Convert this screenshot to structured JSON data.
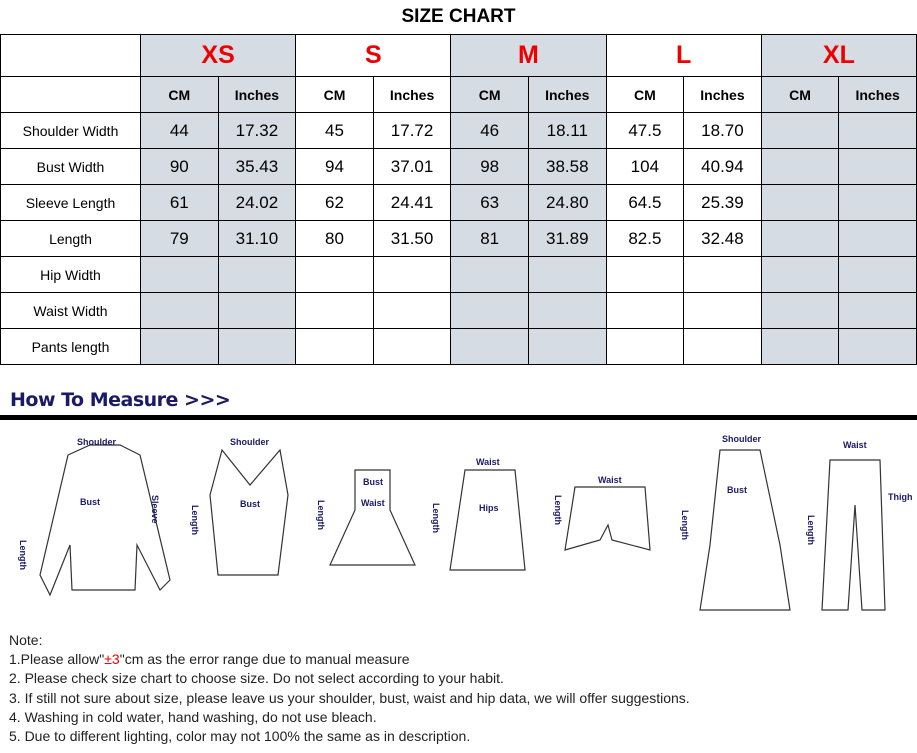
{
  "title": "SIZE CHART",
  "sizes": [
    "XS",
    "S",
    "M",
    "L",
    "XL"
  ],
  "units": [
    "CM",
    "Inches"
  ],
  "rows": [
    {
      "label": "Shoulder Width",
      "values": [
        "44",
        "17.32",
        "45",
        "17.72",
        "46",
        "18.11",
        "47.5",
        "18.70",
        "",
        ""
      ]
    },
    {
      "label": "Bust Width",
      "values": [
        "90",
        "35.43",
        "94",
        "37.01",
        "98",
        "38.58",
        "104",
        "40.94",
        "",
        ""
      ]
    },
    {
      "label": "Sleeve Length",
      "values": [
        "61",
        "24.02",
        "62",
        "24.41",
        "63",
        "24.80",
        "64.5",
        "25.39",
        "",
        ""
      ]
    },
    {
      "label": "Length",
      "values": [
        "79",
        "31.10",
        "80",
        "31.50",
        "81",
        "31.89",
        "82.5",
        "32.48",
        "",
        ""
      ]
    },
    {
      "label": "Hip Width",
      "values": [
        "",
        "",
        "",
        "",
        "",
        "",
        "",
        "",
        "",
        ""
      ]
    },
    {
      "label": "Waist Width",
      "values": [
        "",
        "",
        "",
        "",
        "",
        "",
        "",
        "",
        "",
        ""
      ]
    },
    {
      "label": "Pants length",
      "values": [
        "",
        "",
        "",
        "",
        "",
        "",
        "",
        "",
        "",
        ""
      ]
    }
  ],
  "how_to_measure": "How To Measure >>>",
  "diagram_labels": {
    "shoulder": "Shoulder",
    "bust": "Bust",
    "sleeve": "Sleeve",
    "length": "Length",
    "waist": "Waist",
    "hips": "Hips",
    "thigh": "Thigh"
  },
  "notes": {
    "heading": "Note:",
    "n1_pre": "1.Please allow\"",
    "n1_red": "±3",
    "n1_post": "\"cm as the error range due to manual measure",
    "n2": "2. Please check size chart to choose size. Do not select according to your habit.",
    "n3": "3. If still not sure about size, please leave us your shoulder, bust, waist and hip data, we will offer suggestions.",
    "n4": "4. Washing in cold water, hand washing, do not use bleach.",
    "n5": "5. Due to different lighting, color may not 100% the same as in description."
  },
  "colors": {
    "size_label": "#ee0000",
    "shaded": "#d6dce4",
    "heading": "#1a1a66"
  }
}
